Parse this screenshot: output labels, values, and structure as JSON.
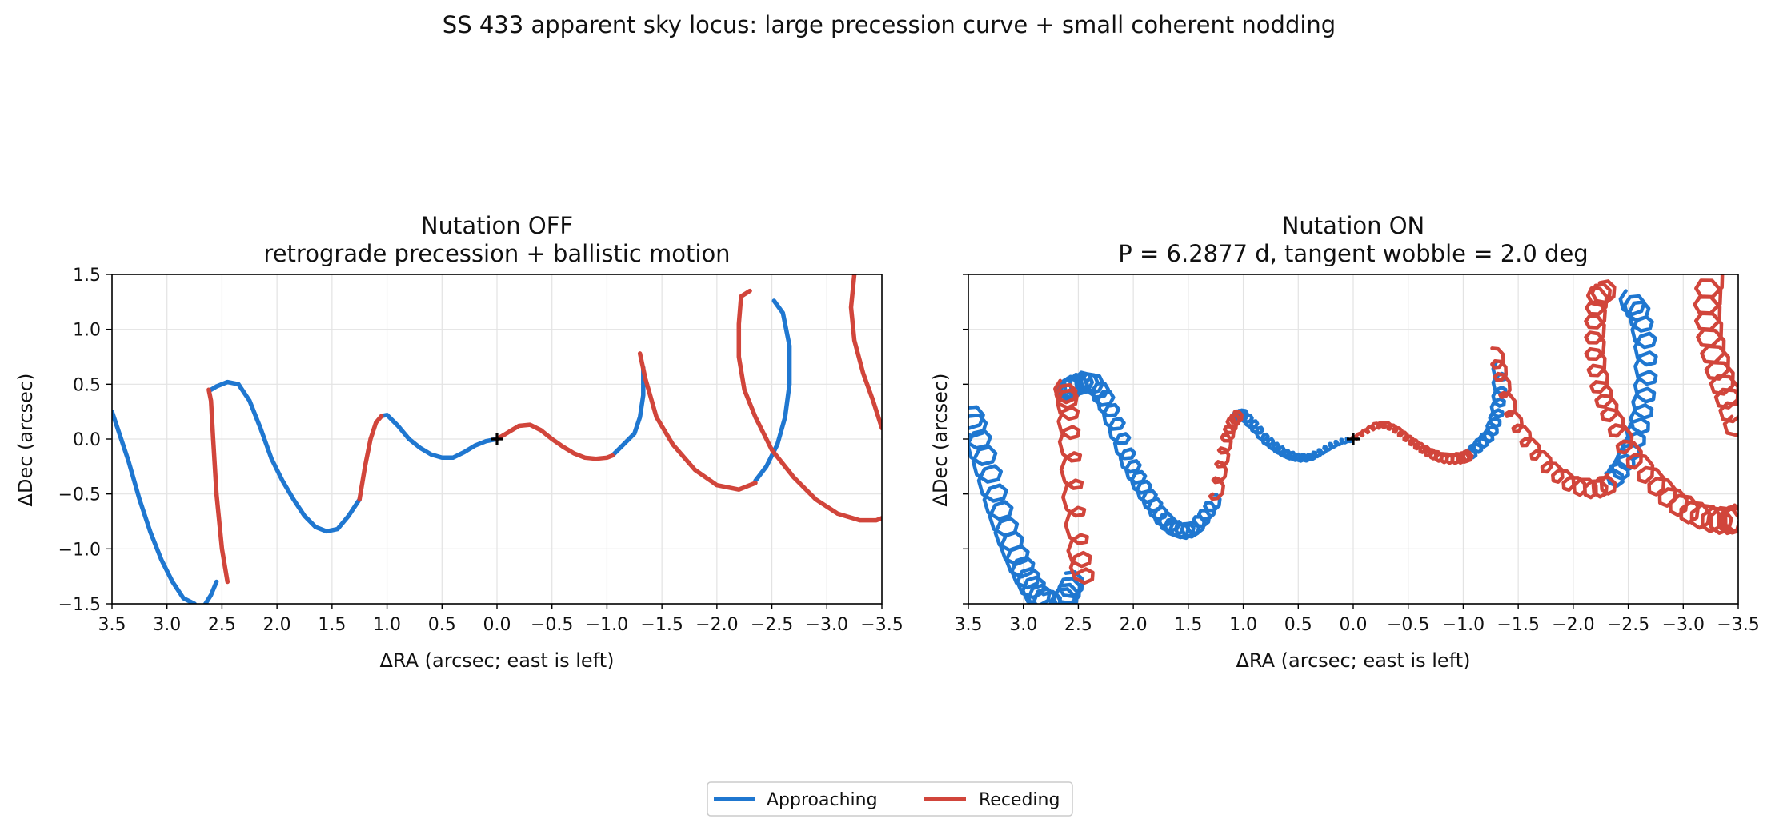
{
  "figure": {
    "suptitle": "SS 433 apparent sky locus: large precession curve + small coherent nodding"
  },
  "legend": {
    "placement": "bottom-center",
    "entries": [
      {
        "label": "Approaching",
        "color": "#1f77d0"
      },
      {
        "label": "Receding",
        "color": "#d1453b"
      }
    ]
  },
  "chart_data": [
    {
      "type": "line",
      "title": "Nutation OFF",
      "subtitle": "retrograde precession + ballistic motion",
      "xlabel": "ΔRA (arcsec; east is left)",
      "ylabel": "ΔDec (arcsec)",
      "xlim": [
        3.5,
        -3.5
      ],
      "ylim": [
        -1.5,
        1.5
      ],
      "xticks": [
        3.5,
        3.0,
        2.5,
        2.0,
        1.5,
        1.0,
        0.5,
        0.0,
        -0.5,
        -1.0,
        -1.5,
        -2.0,
        -2.5,
        -3.0,
        -3.5
      ],
      "yticks": [
        -1.5,
        -1.0,
        -0.5,
        0.0,
        0.5,
        1.0,
        1.5
      ],
      "xtick_labels": [
        "3.5",
        "3.0",
        "2.5",
        "2.0",
        "1.5",
        "1.0",
        "0.5",
        "0.0",
        "−0.5",
        "−1.0",
        "−1.5",
        "−2.0",
        "−2.5",
        "−3.0",
        "−3.5"
      ],
      "ytick_labels": [
        "−1.5",
        "−1.0",
        "−0.5",
        "0.0",
        "0.5",
        "1.0",
        "1.5"
      ],
      "show_ytick_labels": true,
      "grid": true,
      "core_marker": [
        0.0,
        0.0
      ],
      "nutation": false,
      "series": [
        {
          "name": "Approaching",
          "color": "#1f77d0",
          "segments": [
            [
              [
                0.0,
                0.0
              ],
              [
                0.1,
                -0.02
              ],
              [
                0.2,
                -0.06
              ],
              [
                0.3,
                -0.12
              ],
              [
                0.4,
                -0.17
              ],
              [
                0.5,
                -0.17
              ],
              [
                0.6,
                -0.14
              ],
              [
                0.7,
                -0.08
              ],
              [
                0.8,
                0.0
              ],
              [
                0.9,
                0.12
              ],
              [
                1.0,
                0.22
              ],
              [
                1.05,
                0.21
              ]
            ],
            [
              [
                1.25,
                -0.55
              ],
              [
                1.35,
                -0.7
              ],
              [
                1.45,
                -0.82
              ],
              [
                1.55,
                -0.84
              ],
              [
                1.65,
                -0.8
              ],
              [
                1.75,
                -0.7
              ],
              [
                1.85,
                -0.55
              ],
              [
                1.95,
                -0.38
              ],
              [
                2.05,
                -0.18
              ],
              [
                2.15,
                0.1
              ],
              [
                2.25,
                0.35
              ],
              [
                2.35,
                0.5
              ],
              [
                2.45,
                0.52
              ],
              [
                2.55,
                0.48
              ],
              [
                2.6,
                0.45
              ]
            ],
            [
              [
                2.55,
                -1.3
              ],
              [
                2.6,
                -1.42
              ],
              [
                2.65,
                -1.5
              ]
            ],
            [
              [
                2.75,
                -1.5
              ],
              [
                2.85,
                -1.45
              ],
              [
                2.95,
                -1.3
              ],
              [
                3.05,
                -1.1
              ],
              [
                3.15,
                -0.85
              ],
              [
                3.25,
                -0.55
              ],
              [
                3.35,
                -0.2
              ],
              [
                3.45,
                0.1
              ],
              [
                3.5,
                0.25
              ]
            ],
            [
              [
                -1.05,
                -0.15
              ],
              [
                -1.15,
                -0.05
              ],
              [
                -1.25,
                0.05
              ],
              [
                -1.3,
                0.2
              ],
              [
                -1.33,
                0.4
              ],
              [
                -1.33,
                0.65
              ]
            ],
            [
              [
                -2.35,
                -0.38
              ],
              [
                -2.45,
                -0.25
              ],
              [
                -2.55,
                -0.05
              ],
              [
                -2.62,
                0.2
              ],
              [
                -2.66,
                0.5
              ],
              [
                -2.66,
                0.85
              ],
              [
                -2.6,
                1.15
              ],
              [
                -2.52,
                1.26
              ]
            ]
          ]
        },
        {
          "name": "Receding",
          "color": "#d1453b",
          "segments": [
            [
              [
                0.0,
                0.0
              ],
              [
                -0.1,
                0.06
              ],
              [
                -0.2,
                0.12
              ],
              [
                -0.3,
                0.13
              ],
              [
                -0.4,
                0.08
              ],
              [
                -0.5,
                0.0
              ],
              [
                -0.6,
                -0.07
              ],
              [
                -0.7,
                -0.13
              ],
              [
                -0.8,
                -0.17
              ],
              [
                -0.9,
                -0.18
              ],
              [
                -1.0,
                -0.17
              ],
              [
                -1.05,
                -0.15
              ]
            ],
            [
              [
                1.05,
                0.21
              ],
              [
                1.1,
                0.15
              ],
              [
                1.15,
                0.0
              ],
              [
                1.2,
                -0.25
              ],
              [
                1.25,
                -0.55
              ]
            ],
            [
              [
                2.45,
                -1.3
              ],
              [
                2.5,
                -1.0
              ],
              [
                2.55,
                -0.5
              ],
              [
                2.58,
                0.0
              ],
              [
                2.6,
                0.35
              ],
              [
                2.62,
                0.45
              ]
            ],
            [
              [
                -1.3,
                0.78
              ],
              [
                -1.35,
                0.55
              ],
              [
                -1.45,
                0.2
              ],
              [
                -1.6,
                -0.05
              ],
              [
                -1.8,
                -0.28
              ],
              [
                -2.0,
                -0.42
              ],
              [
                -2.2,
                -0.46
              ],
              [
                -2.35,
                -0.4
              ]
            ],
            [
              [
                -2.3,
                1.35
              ],
              [
                -2.22,
                1.3
              ],
              [
                -2.2,
                1.05
              ],
              [
                -2.2,
                0.75
              ],
              [
                -2.25,
                0.45
              ],
              [
                -2.35,
                0.2
              ],
              [
                -2.5,
                -0.1
              ],
              [
                -2.7,
                -0.35
              ],
              [
                -2.9,
                -0.55
              ],
              [
                -3.1,
                -0.68
              ],
              [
                -3.3,
                -0.74
              ],
              [
                -3.45,
                -0.74
              ],
              [
                -3.5,
                -0.72
              ]
            ],
            [
              [
                -3.25,
                1.5
              ],
              [
                -3.22,
                1.2
              ],
              [
                -3.25,
                0.9
              ],
              [
                -3.33,
                0.6
              ],
              [
                -3.42,
                0.35
              ],
              [
                -3.5,
                0.1
              ]
            ]
          ]
        }
      ]
    },
    {
      "type": "line",
      "title": "Nutation ON",
      "subtitle": "P = 6.2877 d, tangent wobble = 2.0 deg",
      "xlabel": "ΔRA (arcsec; east is left)",
      "ylabel": "ΔDec (arcsec)",
      "xlim": [
        3.5,
        -3.5
      ],
      "ylim": [
        -1.5,
        1.5
      ],
      "xticks": [
        3.5,
        3.0,
        2.5,
        2.0,
        1.5,
        1.0,
        0.5,
        0.0,
        -0.5,
        -1.0,
        -1.5,
        -2.0,
        -2.5,
        -3.0,
        -3.5
      ],
      "yticks": [
        -1.5,
        -1.0,
        -0.5,
        0.0,
        0.5,
        1.0,
        1.5
      ],
      "xtick_labels": [
        "3.5",
        "3.0",
        "2.5",
        "2.0",
        "1.5",
        "1.0",
        "0.5",
        "0.0",
        "−0.5",
        "−1.0",
        "−1.5",
        "−2.0",
        "−2.5",
        "−3.0",
        "−3.5"
      ],
      "ytick_labels": [
        "−1.5",
        "−1.0",
        "−0.5",
        "0.0",
        "0.5",
        "1.0",
        "1.5"
      ],
      "show_ytick_labels": false,
      "grid": true,
      "core_marker": [
        0.0,
        0.0
      ],
      "nutation": true,
      "series": [
        {
          "name": "Approaching",
          "color": "#1f77d0",
          "segments": [
            [
              [
                0.0,
                0.0
              ],
              [
                0.1,
                -0.02
              ],
              [
                0.2,
                -0.06
              ],
              [
                0.3,
                -0.12
              ],
              [
                0.4,
                -0.17
              ],
              [
                0.5,
                -0.17
              ],
              [
                0.6,
                -0.14
              ],
              [
                0.7,
                -0.08
              ],
              [
                0.8,
                0.0
              ],
              [
                0.9,
                0.12
              ],
              [
                1.0,
                0.22
              ],
              [
                1.05,
                0.21
              ]
            ],
            [
              [
                1.25,
                -0.55
              ],
              [
                1.35,
                -0.7
              ],
              [
                1.45,
                -0.82
              ],
              [
                1.55,
                -0.84
              ],
              [
                1.65,
                -0.8
              ],
              [
                1.75,
                -0.7
              ],
              [
                1.85,
                -0.55
              ],
              [
                1.95,
                -0.38
              ],
              [
                2.05,
                -0.18
              ],
              [
                2.15,
                0.1
              ],
              [
                2.25,
                0.35
              ],
              [
                2.35,
                0.5
              ],
              [
                2.45,
                0.52
              ],
              [
                2.55,
                0.48
              ],
              [
                2.6,
                0.45
              ]
            ],
            [
              [
                2.55,
                -1.3
              ],
              [
                2.6,
                -1.42
              ],
              [
                2.65,
                -1.5
              ]
            ],
            [
              [
                2.75,
                -1.5
              ],
              [
                2.85,
                -1.45
              ],
              [
                2.95,
                -1.3
              ],
              [
                3.05,
                -1.1
              ],
              [
                3.15,
                -0.85
              ],
              [
                3.25,
                -0.55
              ],
              [
                3.35,
                -0.2
              ],
              [
                3.45,
                0.1
              ],
              [
                3.5,
                0.25
              ]
            ],
            [
              [
                -1.05,
                -0.15
              ],
              [
                -1.15,
                -0.05
              ],
              [
                -1.25,
                0.05
              ],
              [
                -1.3,
                0.2
              ],
              [
                -1.33,
                0.4
              ],
              [
                -1.33,
                0.65
              ]
            ],
            [
              [
                -2.35,
                -0.38
              ],
              [
                -2.45,
                -0.25
              ],
              [
                -2.55,
                -0.05
              ],
              [
                -2.62,
                0.2
              ],
              [
                -2.66,
                0.5
              ],
              [
                -2.66,
                0.85
              ],
              [
                -2.6,
                1.15
              ],
              [
                -2.52,
                1.26
              ]
            ]
          ]
        },
        {
          "name": "Receding",
          "color": "#d1453b",
          "segments": [
            [
              [
                0.0,
                0.0
              ],
              [
                -0.1,
                0.06
              ],
              [
                -0.2,
                0.12
              ],
              [
                -0.3,
                0.13
              ],
              [
                -0.4,
                0.08
              ],
              [
                -0.5,
                0.0
              ],
              [
                -0.6,
                -0.07
              ],
              [
                -0.7,
                -0.13
              ],
              [
                -0.8,
                -0.17
              ],
              [
                -0.9,
                -0.18
              ],
              [
                -1.0,
                -0.17
              ],
              [
                -1.05,
                -0.15
              ]
            ],
            [
              [
                1.05,
                0.21
              ],
              [
                1.1,
                0.15
              ],
              [
                1.15,
                0.0
              ],
              [
                1.2,
                -0.25
              ],
              [
                1.25,
                -0.55
              ]
            ],
            [
              [
                2.45,
                -1.3
              ],
              [
                2.5,
                -1.0
              ],
              [
                2.55,
                -0.5
              ],
              [
                2.58,
                0.0
              ],
              [
                2.6,
                0.35
              ],
              [
                2.62,
                0.45
              ]
            ],
            [
              [
                -1.3,
                0.78
              ],
              [
                -1.35,
                0.55
              ],
              [
                -1.45,
                0.2
              ],
              [
                -1.6,
                -0.05
              ],
              [
                -1.8,
                -0.28
              ],
              [
                -2.0,
                -0.42
              ],
              [
                -2.2,
                -0.46
              ],
              [
                -2.35,
                -0.4
              ]
            ],
            [
              [
                -2.3,
                1.35
              ],
              [
                -2.22,
                1.3
              ],
              [
                -2.2,
                1.05
              ],
              [
                -2.2,
                0.75
              ],
              [
                -2.25,
                0.45
              ],
              [
                -2.35,
                0.2
              ],
              [
                -2.5,
                -0.1
              ],
              [
                -2.7,
                -0.35
              ],
              [
                -2.9,
                -0.55
              ],
              [
                -3.1,
                -0.68
              ],
              [
                -3.3,
                -0.74
              ],
              [
                -3.45,
                -0.74
              ],
              [
                -3.5,
                -0.72
              ]
            ],
            [
              [
                -3.25,
                1.5
              ],
              [
                -3.22,
                1.2
              ],
              [
                -3.25,
                0.9
              ],
              [
                -3.33,
                0.6
              ],
              [
                -3.42,
                0.35
              ],
              [
                -3.5,
                0.1
              ]
            ]
          ]
        }
      ]
    }
  ]
}
